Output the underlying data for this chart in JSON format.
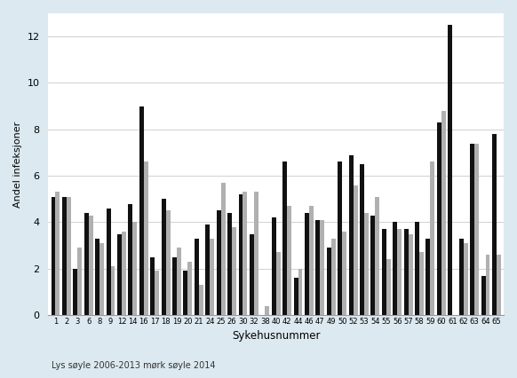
{
  "categories": [
    "1",
    "2",
    "3",
    "6",
    "8",
    "9",
    "12",
    "14",
    "16",
    "17",
    "18",
    "19",
    "20",
    "21",
    "24",
    "25",
    "26",
    "30",
    "32",
    "38",
    "40",
    "42",
    "44",
    "46",
    "47",
    "49",
    "50",
    "52",
    "53",
    "54",
    "55",
    "56",
    "57",
    "58",
    "59",
    "60",
    "61",
    "62",
    "63",
    "64",
    "65"
  ],
  "light_values": [
    5.3,
    5.1,
    2.9,
    4.3,
    3.1,
    2.1,
    3.6,
    4.0,
    6.6,
    1.9,
    4.5,
    2.9,
    2.3,
    1.3,
    3.3,
    5.7,
    3.8,
    5.3,
    5.3,
    0.4,
    2.7,
    4.7,
    2.0,
    4.7,
    4.1,
    3.3,
    3.6,
    5.6,
    4.4,
    5.1,
    2.4,
    3.7,
    3.5,
    2.7,
    6.6,
    8.8,
    0.0,
    3.1,
    7.4,
    2.6,
    2.6
  ],
  "dark_values": [
    5.1,
    5.1,
    2.0,
    4.4,
    3.3,
    4.6,
    3.5,
    4.8,
    9.0,
    2.5,
    5.0,
    2.5,
    1.9,
    3.3,
    3.9,
    4.5,
    4.4,
    5.2,
    3.5,
    0.0,
    4.2,
    6.6,
    1.6,
    4.4,
    4.1,
    2.9,
    6.6,
    6.9,
    6.5,
    4.3,
    3.7,
    4.0,
    3.7,
    4.0,
    3.3,
    8.3,
    12.5,
    3.3,
    7.4,
    1.7,
    7.8
  ],
  "ylabel": "Andel infeksjoner",
  "xlabel": "Sykehusnummer",
  "footnote": "Lys søyle 2006-2013 mørk søyle 2014",
  "ylim": [
    0,
    13
  ],
  "yticks": [
    0,
    2,
    4,
    6,
    8,
    10,
    12
  ],
  "light_color": "#b0b0b0",
  "dark_color": "#111111",
  "background_color": "#dce9f0",
  "plot_background": "#ffffff",
  "grid_color": "#d0d0d0"
}
